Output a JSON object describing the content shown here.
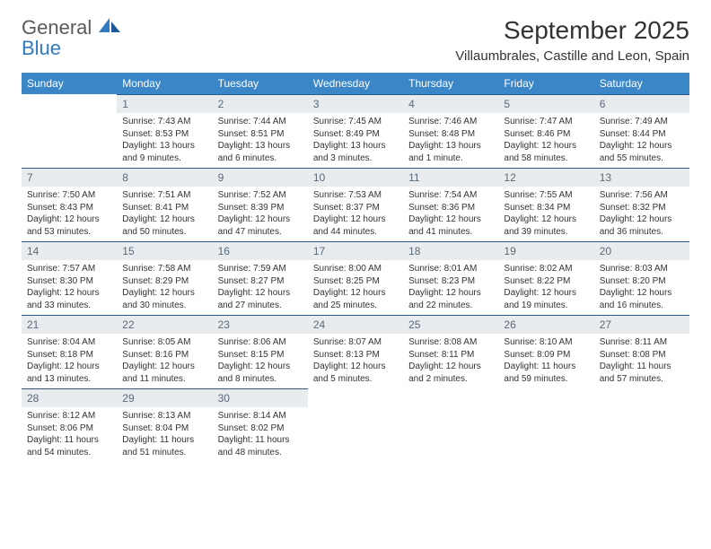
{
  "logo": {
    "line1": "General",
    "line2": "Blue"
  },
  "title": "September 2025",
  "location": "Villaumbrales, Castille and Leon, Spain",
  "colors": {
    "header_bg": "#3b86c6",
    "header_text": "#ffffff",
    "daynum_bg": "#e8ecef",
    "daynum_text": "#5a6a78",
    "cell_border_top": "#2a5a8a",
    "logo_blue": "#2f7ac0",
    "body_text": "#333333"
  },
  "weekdays": [
    "Sunday",
    "Monday",
    "Tuesday",
    "Wednesday",
    "Thursday",
    "Friday",
    "Saturday"
  ],
  "weeks": [
    [
      null,
      {
        "n": "1",
        "sr": "Sunrise: 7:43 AM",
        "ss": "Sunset: 8:53 PM",
        "dl": "Daylight: 13 hours and 9 minutes."
      },
      {
        "n": "2",
        "sr": "Sunrise: 7:44 AM",
        "ss": "Sunset: 8:51 PM",
        "dl": "Daylight: 13 hours and 6 minutes."
      },
      {
        "n": "3",
        "sr": "Sunrise: 7:45 AM",
        "ss": "Sunset: 8:49 PM",
        "dl": "Daylight: 13 hours and 3 minutes."
      },
      {
        "n": "4",
        "sr": "Sunrise: 7:46 AM",
        "ss": "Sunset: 8:48 PM",
        "dl": "Daylight: 13 hours and 1 minute."
      },
      {
        "n": "5",
        "sr": "Sunrise: 7:47 AM",
        "ss": "Sunset: 8:46 PM",
        "dl": "Daylight: 12 hours and 58 minutes."
      },
      {
        "n": "6",
        "sr": "Sunrise: 7:49 AM",
        "ss": "Sunset: 8:44 PM",
        "dl": "Daylight: 12 hours and 55 minutes."
      }
    ],
    [
      {
        "n": "7",
        "sr": "Sunrise: 7:50 AM",
        "ss": "Sunset: 8:43 PM",
        "dl": "Daylight: 12 hours and 53 minutes."
      },
      {
        "n": "8",
        "sr": "Sunrise: 7:51 AM",
        "ss": "Sunset: 8:41 PM",
        "dl": "Daylight: 12 hours and 50 minutes."
      },
      {
        "n": "9",
        "sr": "Sunrise: 7:52 AM",
        "ss": "Sunset: 8:39 PM",
        "dl": "Daylight: 12 hours and 47 minutes."
      },
      {
        "n": "10",
        "sr": "Sunrise: 7:53 AM",
        "ss": "Sunset: 8:37 PM",
        "dl": "Daylight: 12 hours and 44 minutes."
      },
      {
        "n": "11",
        "sr": "Sunrise: 7:54 AM",
        "ss": "Sunset: 8:36 PM",
        "dl": "Daylight: 12 hours and 41 minutes."
      },
      {
        "n": "12",
        "sr": "Sunrise: 7:55 AM",
        "ss": "Sunset: 8:34 PM",
        "dl": "Daylight: 12 hours and 39 minutes."
      },
      {
        "n": "13",
        "sr": "Sunrise: 7:56 AM",
        "ss": "Sunset: 8:32 PM",
        "dl": "Daylight: 12 hours and 36 minutes."
      }
    ],
    [
      {
        "n": "14",
        "sr": "Sunrise: 7:57 AM",
        "ss": "Sunset: 8:30 PM",
        "dl": "Daylight: 12 hours and 33 minutes."
      },
      {
        "n": "15",
        "sr": "Sunrise: 7:58 AM",
        "ss": "Sunset: 8:29 PM",
        "dl": "Daylight: 12 hours and 30 minutes."
      },
      {
        "n": "16",
        "sr": "Sunrise: 7:59 AM",
        "ss": "Sunset: 8:27 PM",
        "dl": "Daylight: 12 hours and 27 minutes."
      },
      {
        "n": "17",
        "sr": "Sunrise: 8:00 AM",
        "ss": "Sunset: 8:25 PM",
        "dl": "Daylight: 12 hours and 25 minutes."
      },
      {
        "n": "18",
        "sr": "Sunrise: 8:01 AM",
        "ss": "Sunset: 8:23 PM",
        "dl": "Daylight: 12 hours and 22 minutes."
      },
      {
        "n": "19",
        "sr": "Sunrise: 8:02 AM",
        "ss": "Sunset: 8:22 PM",
        "dl": "Daylight: 12 hours and 19 minutes."
      },
      {
        "n": "20",
        "sr": "Sunrise: 8:03 AM",
        "ss": "Sunset: 8:20 PM",
        "dl": "Daylight: 12 hours and 16 minutes."
      }
    ],
    [
      {
        "n": "21",
        "sr": "Sunrise: 8:04 AM",
        "ss": "Sunset: 8:18 PM",
        "dl": "Daylight: 12 hours and 13 minutes."
      },
      {
        "n": "22",
        "sr": "Sunrise: 8:05 AM",
        "ss": "Sunset: 8:16 PM",
        "dl": "Daylight: 12 hours and 11 minutes."
      },
      {
        "n": "23",
        "sr": "Sunrise: 8:06 AM",
        "ss": "Sunset: 8:15 PM",
        "dl": "Daylight: 12 hours and 8 minutes."
      },
      {
        "n": "24",
        "sr": "Sunrise: 8:07 AM",
        "ss": "Sunset: 8:13 PM",
        "dl": "Daylight: 12 hours and 5 minutes."
      },
      {
        "n": "25",
        "sr": "Sunrise: 8:08 AM",
        "ss": "Sunset: 8:11 PM",
        "dl": "Daylight: 12 hours and 2 minutes."
      },
      {
        "n": "26",
        "sr": "Sunrise: 8:10 AM",
        "ss": "Sunset: 8:09 PM",
        "dl": "Daylight: 11 hours and 59 minutes."
      },
      {
        "n": "27",
        "sr": "Sunrise: 8:11 AM",
        "ss": "Sunset: 8:08 PM",
        "dl": "Daylight: 11 hours and 57 minutes."
      }
    ],
    [
      {
        "n": "28",
        "sr": "Sunrise: 8:12 AM",
        "ss": "Sunset: 8:06 PM",
        "dl": "Daylight: 11 hours and 54 minutes."
      },
      {
        "n": "29",
        "sr": "Sunrise: 8:13 AM",
        "ss": "Sunset: 8:04 PM",
        "dl": "Daylight: 11 hours and 51 minutes."
      },
      {
        "n": "30",
        "sr": "Sunrise: 8:14 AM",
        "ss": "Sunset: 8:02 PM",
        "dl": "Daylight: 11 hours and 48 minutes."
      },
      null,
      null,
      null,
      null
    ]
  ]
}
